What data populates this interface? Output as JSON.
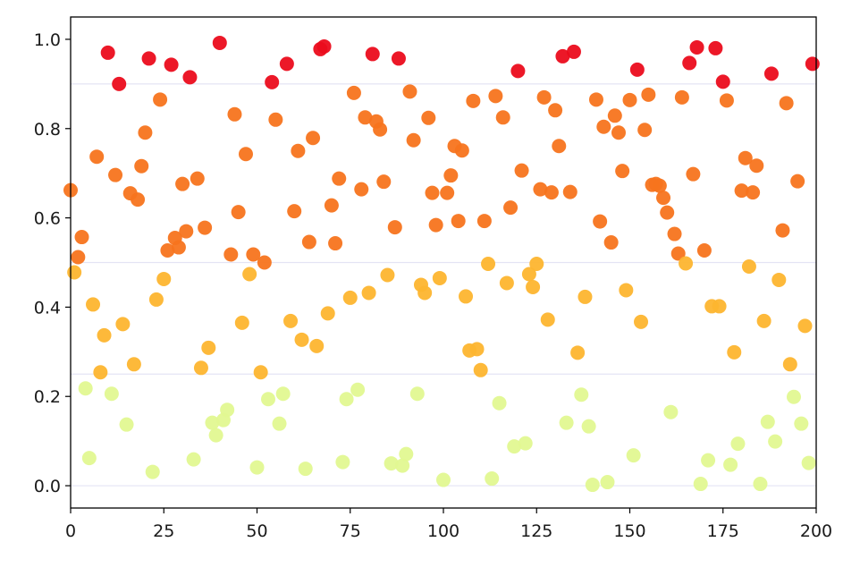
{
  "chart_data": {
    "type": "scatter",
    "title": "",
    "xlabel": "",
    "ylabel": "",
    "xlim": [
      0,
      200
    ],
    "ylim": [
      -0.05,
      1.05
    ],
    "x_ticks": [
      0,
      25,
      50,
      75,
      100,
      125,
      150,
      175,
      200
    ],
    "x_tick_labels": [
      "0",
      "25",
      "50",
      "75",
      "100",
      "125",
      "150",
      "175",
      "200"
    ],
    "y_ticks": [
      0.0,
      0.2,
      0.4,
      0.6,
      0.8,
      1.0
    ],
    "y_tick_labels": [
      "0.0",
      "0.2",
      "0.4",
      "0.6",
      "0.8",
      "1.0"
    ],
    "reference_lines_y": [
      0,
      0.25,
      0.5,
      0.9
    ],
    "reference_line_color": "#e4e4f4",
    "grid": false,
    "legend": "none",
    "colors": {
      "band_0": "#e2f891",
      "band_1": "#fdb52f",
      "band_2": "#f7741e",
      "band_3": "#eb0c1c"
    },
    "color_thresholds": [
      0.25,
      0.5,
      0.9
    ],
    "points": [
      [
        0,
        0.662
      ],
      [
        1,
        0.478
      ],
      [
        2,
        0.512
      ],
      [
        3,
        0.557
      ],
      [
        4,
        0.218
      ],
      [
        5,
        0.062
      ],
      [
        6,
        0.406
      ],
      [
        7,
        0.737
      ],
      [
        8,
        0.254
      ],
      [
        9,
        0.337
      ],
      [
        10,
        0.97
      ],
      [
        11,
        0.206
      ],
      [
        12,
        0.696
      ],
      [
        13,
        0.9
      ],
      [
        14,
        0.362
      ],
      [
        15,
        0.137
      ],
      [
        16,
        0.655
      ],
      [
        17,
        0.272
      ],
      [
        18,
        0.641
      ],
      [
        19,
        0.716
      ],
      [
        20,
        0.791
      ],
      [
        21,
        0.957
      ],
      [
        22,
        0.031
      ],
      [
        23,
        0.417
      ],
      [
        24,
        0.865
      ],
      [
        25,
        0.463
      ],
      [
        26,
        0.527
      ],
      [
        27,
        0.943
      ],
      [
        28,
        0.555
      ],
      [
        29,
        0.534
      ],
      [
        30,
        0.676
      ],
      [
        31,
        0.57
      ],
      [
        32,
        0.915
      ],
      [
        33,
        0.059
      ],
      [
        34,
        0.688
      ],
      [
        35,
        0.264
      ],
      [
        36,
        0.578
      ],
      [
        37,
        0.309
      ],
      [
        38,
        0.141
      ],
      [
        39,
        0.113
      ],
      [
        40,
        0.992
      ],
      [
        41,
        0.147
      ],
      [
        42,
        0.17
      ],
      [
        43,
        0.518
      ],
      [
        44,
        0.832
      ],
      [
        45,
        0.613
      ],
      [
        46,
        0.365
      ],
      [
        47,
        0.743
      ],
      [
        48,
        0.474
      ],
      [
        49,
        0.518
      ],
      [
        50,
        0.041
      ],
      [
        51,
        0.254
      ],
      [
        52,
        0.5
      ],
      [
        53,
        0.194
      ],
      [
        54,
        0.904
      ],
      [
        55,
        0.82
      ],
      [
        56,
        0.139
      ],
      [
        57,
        0.206
      ],
      [
        58,
        0.945
      ],
      [
        59,
        0.369
      ],
      [
        60,
        0.615
      ],
      [
        61,
        0.75
      ],
      [
        62,
        0.327
      ],
      [
        63,
        0.038
      ],
      [
        64,
        0.546
      ],
      [
        65,
        0.779
      ],
      [
        66,
        0.313
      ],
      [
        67,
        0.978
      ],
      [
        68,
        0.984
      ],
      [
        69,
        0.386
      ],
      [
        70,
        0.628
      ],
      [
        71,
        0.543
      ],
      [
        72,
        0.688
      ],
      [
        73,
        0.053
      ],
      [
        74,
        0.194
      ],
      [
        75,
        0.421
      ],
      [
        76,
        0.88
      ],
      [
        77,
        0.215
      ],
      [
        78,
        0.664
      ],
      [
        79,
        0.825
      ],
      [
        80,
        0.432
      ],
      [
        81,
        0.967
      ],
      [
        82,
        0.816
      ],
      [
        83,
        0.798
      ],
      [
        84,
        0.681
      ],
      [
        85,
        0.472
      ],
      [
        86,
        0.05
      ],
      [
        87,
        0.579
      ],
      [
        88,
        0.957
      ],
      [
        89,
        0.045
      ],
      [
        90,
        0.071
      ],
      [
        91,
        0.883
      ],
      [
        92,
        0.774
      ],
      [
        93,
        0.206
      ],
      [
        94,
        0.45
      ],
      [
        95,
        0.432
      ],
      [
        96,
        0.824
      ],
      [
        97,
        0.656
      ],
      [
        98,
        0.584
      ],
      [
        99,
        0.465
      ],
      [
        100,
        0.013
      ],
      [
        101,
        0.656
      ],
      [
        102,
        0.695
      ],
      [
        103,
        0.761
      ],
      [
        104,
        0.593
      ],
      [
        105,
        0.751
      ],
      [
        106,
        0.424
      ],
      [
        107,
        0.303
      ],
      [
        108,
        0.862
      ],
      [
        109,
        0.306
      ],
      [
        110,
        0.259
      ],
      [
        111,
        0.593
      ],
      [
        112,
        0.497
      ],
      [
        113,
        0.016
      ],
      [
        114,
        0.873
      ],
      [
        115,
        0.185
      ],
      [
        116,
        0.825
      ],
      [
        117,
        0.454
      ],
      [
        118,
        0.623
      ],
      [
        119,
        0.088
      ],
      [
        120,
        0.929
      ],
      [
        121,
        0.706
      ],
      [
        122,
        0.095
      ],
      [
        123,
        0.474
      ],
      [
        124,
        0.445
      ],
      [
        125,
        0.497
      ],
      [
        126,
        0.664
      ],
      [
        127,
        0.87
      ],
      [
        128,
        0.372
      ],
      [
        129,
        0.657
      ],
      [
        130,
        0.841
      ],
      [
        131,
        0.761
      ],
      [
        132,
        0.962
      ],
      [
        133,
        0.141
      ],
      [
        134,
        0.658
      ],
      [
        135,
        0.972
      ],
      [
        136,
        0.298
      ],
      [
        137,
        0.204
      ],
      [
        138,
        0.423
      ],
      [
        139,
        0.133
      ],
      [
        140,
        0.002
      ],
      [
        141,
        0.865
      ],
      [
        142,
        0.592
      ],
      [
        143,
        0.804
      ],
      [
        144,
        0.008
      ],
      [
        145,
        0.545
      ],
      [
        146,
        0.829
      ],
      [
        147,
        0.791
      ],
      [
        148,
        0.705
      ],
      [
        149,
        0.438
      ],
      [
        150,
        0.864
      ],
      [
        151,
        0.068
      ],
      [
        152,
        0.932
      ],
      [
        153,
        0.367
      ],
      [
        154,
        0.797
      ],
      [
        155,
        0.876
      ],
      [
        156,
        0.674
      ],
      [
        157,
        0.676
      ],
      [
        158,
        0.672
      ],
      [
        159,
        0.645
      ],
      [
        160,
        0.612
      ],
      [
        161,
        0.165
      ],
      [
        162,
        0.564
      ],
      [
        163,
        0.52
      ],
      [
        164,
        0.87
      ],
      [
        165,
        0.498
      ],
      [
        166,
        0.947
      ],
      [
        167,
        0.698
      ],
      [
        168,
        0.982
      ],
      [
        169,
        0.004
      ],
      [
        170,
        0.527
      ],
      [
        171,
        0.057
      ],
      [
        172,
        0.402
      ],
      [
        173,
        0.98
      ],
      [
        174,
        0.402
      ],
      [
        175,
        0.905
      ],
      [
        176,
        0.863
      ],
      [
        177,
        0.047
      ],
      [
        178,
        0.299
      ],
      [
        179,
        0.094
      ],
      [
        180,
        0.661
      ],
      [
        181,
        0.734
      ],
      [
        182,
        0.491
      ],
      [
        183,
        0.657
      ],
      [
        184,
        0.717
      ],
      [
        185,
        0.004
      ],
      [
        186,
        0.369
      ],
      [
        187,
        0.143
      ],
      [
        188,
        0.923
      ],
      [
        189,
        0.099
      ],
      [
        190,
        0.461
      ],
      [
        191,
        0.572
      ],
      [
        192,
        0.857
      ],
      [
        193,
        0.272
      ],
      [
        194,
        0.199
      ],
      [
        195,
        0.682
      ],
      [
        196,
        0.139
      ],
      [
        197,
        0.358
      ],
      [
        198,
        0.051
      ],
      [
        199,
        0.945
      ]
    ]
  }
}
